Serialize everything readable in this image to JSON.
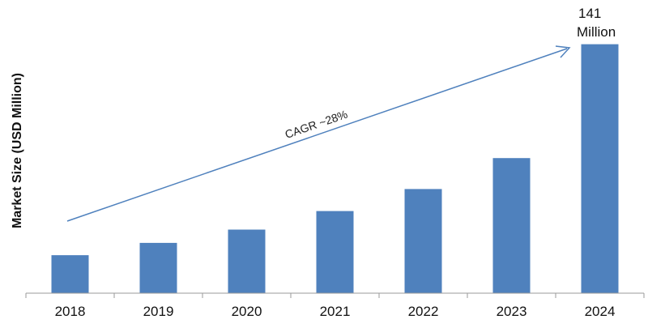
{
  "chart_data": {
    "type": "bar",
    "categories": [
      "2018",
      "2019",
      "2020",
      "2021",
      "2022",
      "2023",
      "2024"
    ],
    "values": [
      21.5,
      28.5,
      36,
      46.5,
      59,
      76.5,
      141
    ],
    "ylabel": "Market Size (USD Million)",
    "xlabel": "",
    "ylim": [
      0,
      150
    ],
    "grid": false,
    "bar_color": "#4F81BD",
    "annotations": {
      "last_value_line1": "141",
      "last_value_line2": "Million",
      "cagr": "CAGR ~28%"
    }
  }
}
